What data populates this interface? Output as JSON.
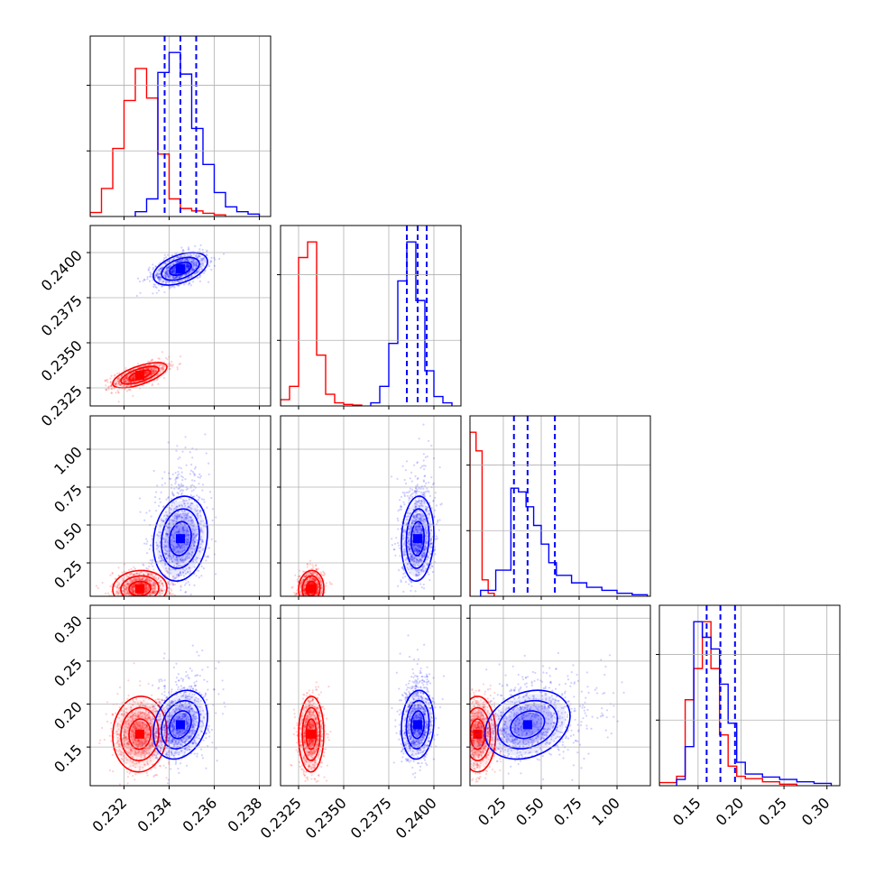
{
  "chart_data": {
    "type": "corner",
    "colors": {
      "red": "#ff0000",
      "blue": "#0000ff"
    },
    "parameters": [
      {
        "ticks": [
          "0.232",
          "0.234",
          "0.236",
          "0.238"
        ],
        "tick_values": [
          0.232,
          0.234,
          0.236,
          0.238
        ],
        "range": [
          0.2305,
          0.2385
        ]
      },
      {
        "ticks": [
          "0.2325",
          "0.2350",
          "0.2375",
          "0.2400"
        ],
        "tick_values": [
          0.2325,
          0.235,
          0.2375,
          0.24
        ],
        "range": [
          0.2315,
          0.2415
        ]
      },
      {
        "ticks": [
          "0.25",
          "0.50",
          "0.75",
          "1.00"
        ],
        "tick_values": [
          0.25,
          0.5,
          0.75,
          1.0
        ],
        "range": [
          0.03,
          1.22
        ]
      },
      {
        "ticks": [
          "0.15",
          "0.20",
          "0.25",
          "0.30"
        ],
        "tick_values": [
          0.15,
          0.2,
          0.25,
          0.3
        ],
        "range": [
          0.105,
          0.315
        ]
      }
    ],
    "series": [
      {
        "color": "#ff0000",
        "centers": [
          0.2327,
          0.2332,
          0.08,
          0.165
        ],
        "sigmas": [
          0.0006,
          0.00035,
          0.06,
          0.022
        ],
        "correlations": {
          "1-0": 0.65,
          "2-0": 0.05,
          "2-1": 0.05,
          "3-0": 0.05,
          "3-1": 0.02,
          "3-2": 0.0
        },
        "histograms": [
          {
            "edges": [
              0.2305,
              0.231,
              0.2315,
              0.232,
              0.2325,
              0.233,
              0.2335,
              0.234,
              0.2345,
              0.235,
              0.2355,
              0.236,
              0.2365
            ],
            "counts": [
              5,
              35,
              85,
              145,
              185,
              148,
              78,
              22,
              10,
              7,
              4,
              2
            ]
          },
          {
            "edges": [
              0.2315,
              0.232,
              0.2325,
              0.233,
              0.2335,
              0.234,
              0.2345,
              0.235,
              0.2355,
              0.236
            ],
            "counts": [
              8,
              25,
              190,
              210,
              65,
              15,
              4,
              2,
              1
            ]
          },
          {
            "edges": [
              0.03,
              0.07,
              0.11,
              0.15,
              0.19
            ],
            "counts": [
              220,
              195,
              22,
              4
            ]
          },
          {
            "edges": [
              0.105,
              0.125,
              0.135,
              0.145,
              0.155,
              0.165,
              0.175,
              0.185,
              0.195,
              0.205,
              0.225,
              0.245,
              0.265
            ],
            "counts": [
              4,
              12,
              110,
              150,
              210,
              150,
              65,
              25,
              12,
              9,
              5,
              2
            ]
          }
        ]
      },
      {
        "color": "#0000ff",
        "centers": [
          0.2345,
          0.2391,
          0.41,
          0.176
        ],
        "sigmas": [
          0.0006,
          0.00045,
          0.14,
          0.02
        ],
        "correlations": {
          "1-0": 0.45,
          "2-0": 0.15,
          "2-1": 0.1,
          "3-0": 0.25,
          "3-1": 0.1,
          "3-2": 0.25
        },
        "quantiles": [
          [
            0.2338,
            0.2345,
            0.2352
          ],
          [
            0.2385,
            0.2391,
            0.2396
          ],
          [
            0.32,
            0.41,
            0.59
          ],
          [
            0.16,
            0.176,
            0.193
          ]
        ],
        "histograms": [
          {
            "edges": [
              0.2325,
              0.233,
              0.2335,
              0.234,
              0.2345,
              0.235,
              0.2355,
              0.236,
              0.2365,
              0.237,
              0.2375,
              0.238
            ],
            "counts": [
              6,
              22,
              180,
              205,
              178,
              110,
              65,
              30,
              12,
              6,
              3
            ]
          },
          {
            "edges": [
              0.2365,
              0.237,
              0.2375,
              0.238,
              0.2385,
              0.239,
              0.2395,
              0.24,
              0.2405,
              0.241
            ],
            "counts": [
              4,
              25,
              80,
              160,
              210,
              135,
              45,
              12,
              4
            ]
          },
          {
            "edges": [
              0.1,
              0.2,
              0.3,
              0.35,
              0.4,
              0.45,
              0.5,
              0.55,
              0.6,
              0.7,
              0.8,
              0.9,
              1.0,
              1.1,
              1.2
            ],
            "counts": [
              8,
              35,
              145,
              140,
              120,
              95,
              70,
              45,
              28,
              18,
              12,
              8,
              4,
              2
            ]
          },
          {
            "edges": [
              0.125,
              0.135,
              0.145,
              0.155,
              0.165,
              0.175,
              0.185,
              0.195,
              0.205,
              0.225,
              0.245,
              0.265,
              0.285,
              0.305
            ],
            "counts": [
              8,
              50,
              210,
              190,
              175,
              130,
              80,
              30,
              15,
              11,
              8,
              5,
              3
            ]
          }
        ]
      }
    ]
  }
}
